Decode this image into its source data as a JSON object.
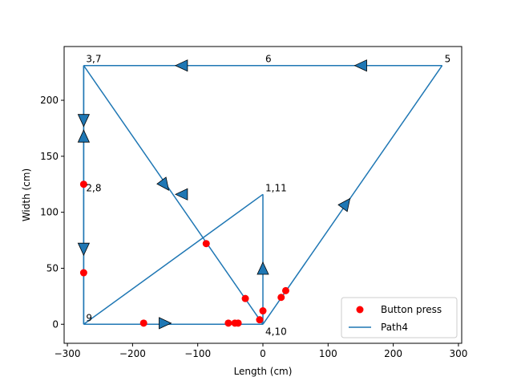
{
  "chart_data": {
    "type": "line",
    "xlabel": "Length (cm)",
    "ylabel": "Width (cm)",
    "xlim": [
      -305,
      305
    ],
    "ylim": [
      -17,
      248
    ],
    "xticks": [
      -300,
      -200,
      -100,
      0,
      100,
      200,
      300
    ],
    "yticks": [
      0,
      50,
      100,
      150,
      200
    ],
    "grid": false,
    "legend_position": "lower right",
    "colors": {
      "path": "#1f77b4",
      "buttons": "#ff0000"
    },
    "series": [
      {
        "name": "Path4",
        "kind": "line",
        "points": [
          [
            0,
            116
          ],
          [
            0,
            0
          ],
          [
            -275,
            231
          ],
          [
            -275,
            116
          ],
          [
            -275,
            0
          ],
          [
            0,
            0
          ],
          [
            275,
            231
          ],
          [
            0,
            231
          ],
          [
            -275,
            231
          ],
          [
            -275,
            116
          ],
          [
            -275,
            0
          ],
          [
            0,
            116
          ]
        ],
        "points_note_omit": true
      },
      {
        "name": "Button press",
        "kind": "scatter",
        "points": [
          [
            -275,
            125
          ],
          [
            -275,
            46
          ],
          [
            -87,
            72
          ],
          [
            -27,
            23
          ],
          [
            -183,
            1
          ],
          [
            -53,
            1
          ],
          [
            -43,
            1
          ],
          [
            -38,
            1
          ],
          [
            -5,
            4
          ],
          [
            0,
            12
          ],
          [
            28,
            24
          ],
          [
            35,
            30
          ]
        ]
      }
    ],
    "arrows": [
      {
        "x": 0,
        "y": 50,
        "dir": "up"
      },
      {
        "x": 150,
        "y": 231,
        "dir": "left"
      },
      {
        "x": -125,
        "y": 231,
        "dir": "left"
      },
      {
        "x": -275,
        "y": 182,
        "dir": "down"
      },
      {
        "x": -275,
        "y": 168,
        "dir": "up"
      },
      {
        "x": -275,
        "y": 67,
        "dir": "down"
      },
      {
        "x": -150,
        "y": 1,
        "dir": "right"
      },
      {
        "x": -125,
        "y": 116,
        "dir": "left"
      },
      {
        "x": -150,
        "y": 124,
        "dir": "down-right"
      },
      {
        "x": 128,
        "y": 108,
        "dir": "up-right"
      }
    ],
    "annotations": [
      {
        "text": "3,7",
        "x": -275,
        "y": 231
      },
      {
        "text": "6",
        "x": 0,
        "y": 231
      },
      {
        "text": "5",
        "x": 275,
        "y": 231
      },
      {
        "text": "2,8",
        "x": -275,
        "y": 116
      },
      {
        "text": "1,11",
        "x": 0,
        "y": 116
      },
      {
        "text": "9",
        "x": -275,
        "y": 0
      },
      {
        "text": "4,10",
        "x": 0,
        "y": 0
      }
    ],
    "legend": [
      "Button press",
      "Path4"
    ]
  }
}
